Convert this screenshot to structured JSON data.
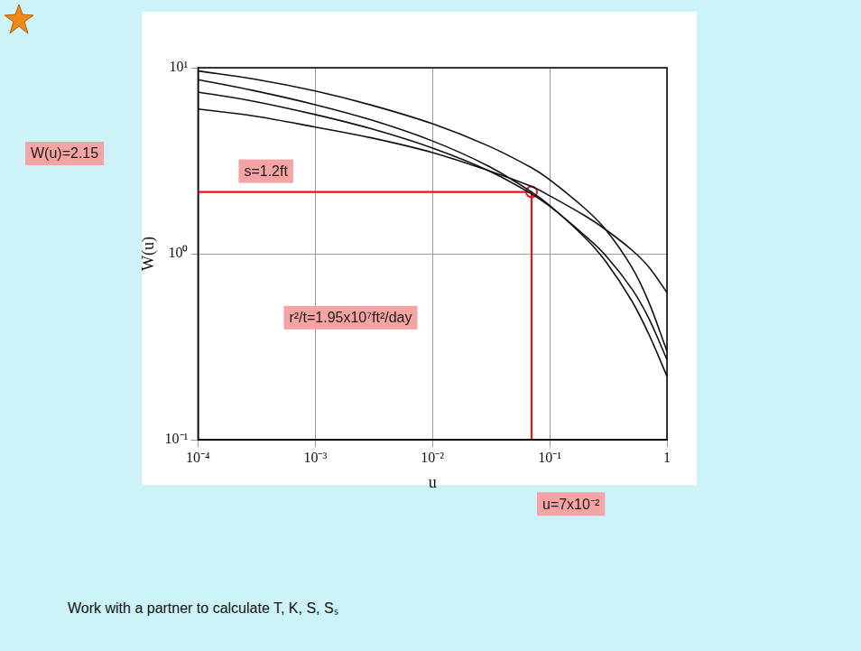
{
  "chart_data": {
    "type": "line",
    "x_label": "u",
    "y_label": "W(u)",
    "log": true,
    "grid": true,
    "x": [
      0.0001,
      0.0003,
      0.001,
      0.003,
      0.01,
      0.03,
      0.07,
      0.1,
      0.2,
      0.3,
      0.5,
      0.7,
      1
    ],
    "series": [
      {
        "color": "#111111",
        "values": [
          8.63,
          7.53,
          6.33,
          5.24,
          4.04,
          2.96,
          2.15,
          1.82,
          1.22,
          0.91,
          0.56,
          0.37,
          0.22
        ]
      },
      {
        "color": "#111111",
        "values": [
          9.6,
          8.7,
          7.5,
          6.3,
          5.0,
          3.8,
          2.9,
          2.5,
          1.75,
          1.35,
          0.85,
          0.55,
          0.3
        ]
      },
      {
        "color": "#111111",
        "values": [
          7.4,
          6.6,
          5.6,
          4.7,
          3.7,
          2.8,
          2.1,
          1.8,
          1.25,
          0.98,
          0.65,
          0.45,
          0.27
        ]
      },
      {
        "color": "#111111",
        "values": [
          6.0,
          5.5,
          4.8,
          4.2,
          3.5,
          2.8,
          2.3,
          2.05,
          1.6,
          1.35,
          1.05,
          0.85,
          0.62
        ]
      }
    ],
    "xlim": [
      0.0001,
      1
    ],
    "xticks": [
      {
        "value": 0.0001,
        "label": "10⁻⁴"
      },
      {
        "value": 0.001,
        "label": "10⁻³"
      },
      {
        "value": 0.01,
        "label": "10⁻²"
      },
      {
        "value": 0.1,
        "label": "10⁻¹"
      },
      1
    ],
    "ylim": [
      0.1,
      10
    ],
    "yticks": [
      {
        "value": 0.1,
        "label": "10⁻¹"
      },
      {
        "value": 1,
        "label": "10⁰"
      },
      {
        "value": 10,
        "label": "10¹"
      }
    ],
    "match_point": {
      "x": 0.07,
      "y": 2.15,
      "color": "#e8141c",
      "marker": "circle"
    },
    "annotations": [
      "W(u)=2.15",
      "s=1.2ft",
      "r²/t=1.95x10⁷ft²/day",
      "u=7x10⁻²"
    ]
  },
  "footer": "Work with a partner to calculate T, K, S, Sₛ"
}
